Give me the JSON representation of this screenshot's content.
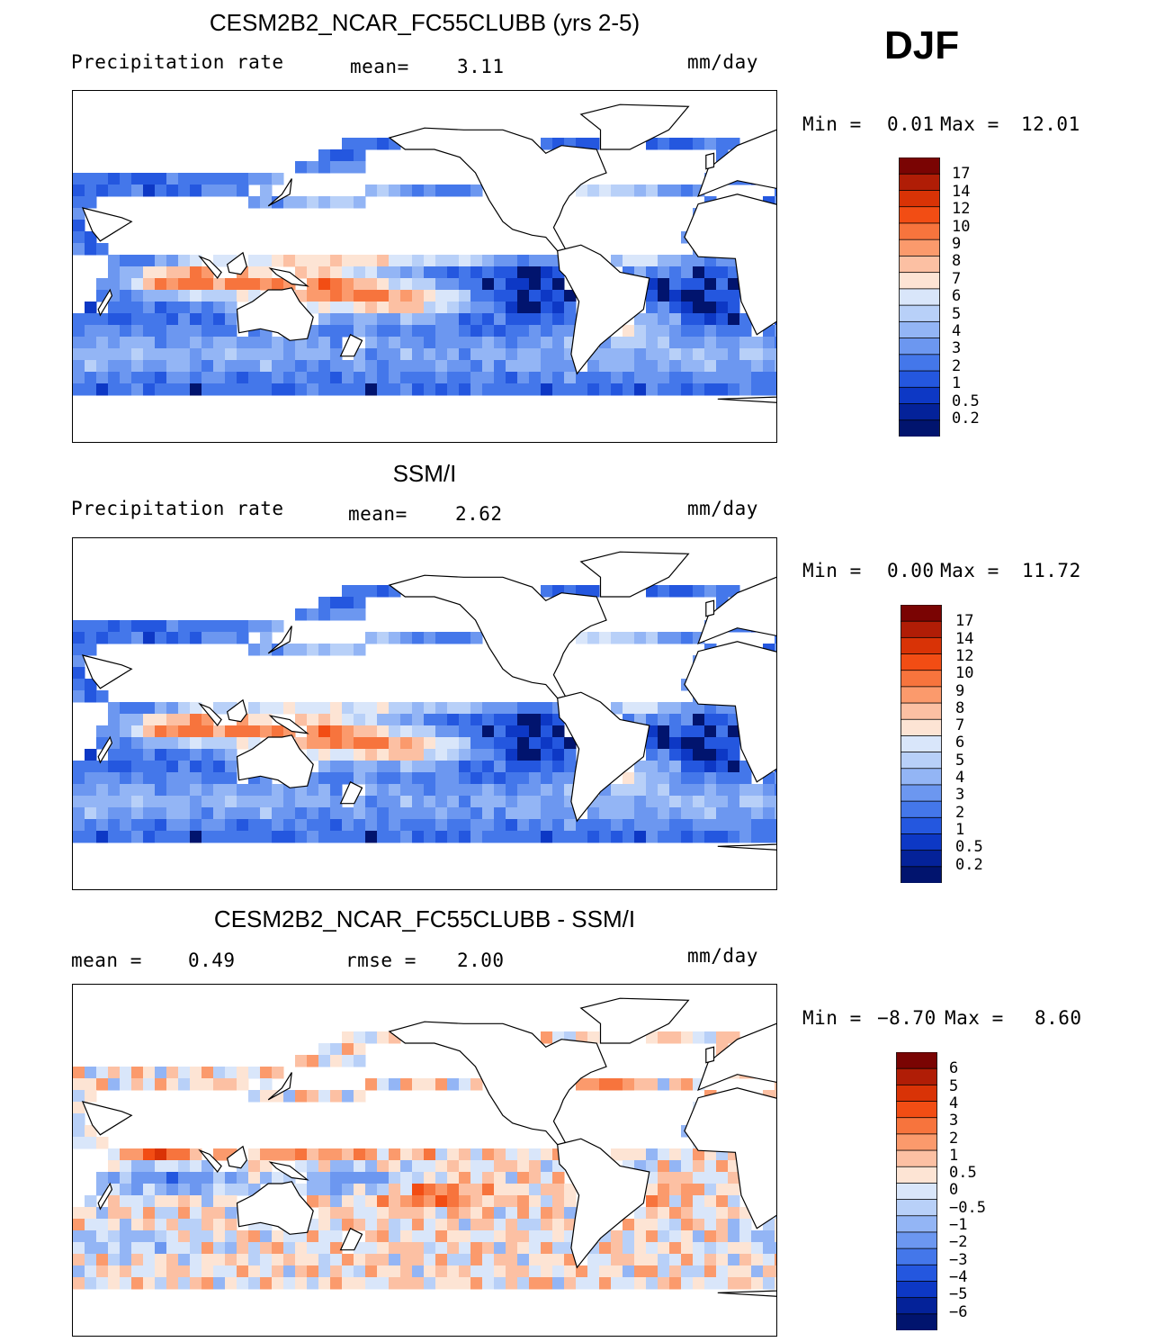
{
  "season": "DJF",
  "panels": [
    {
      "title": "CESM2B2_NCAR_FC55CLUBB (yrs 2-5)",
      "left_label": "Precipitation rate",
      "center_label": "mean=",
      "center_value": "3.11",
      "units": "mm/day",
      "min_label": "Min =",
      "min_value": "0.01",
      "max_label": "Max =",
      "max_value": "12.01",
      "palette": "precip",
      "pattern": "model"
    },
    {
      "title": "SSM/I",
      "left_label": "Precipitation rate",
      "center_label": "mean=",
      "center_value": "2.62",
      "units": "mm/day",
      "min_label": "Min =",
      "min_value": "0.00",
      "max_label": "Max =",
      "max_value": "11.72",
      "palette": "precip",
      "pattern": "obs"
    },
    {
      "title": "CESM2B2_NCAR_FC55CLUBB - SSM/I",
      "left_label": "mean =",
      "left_value": "0.49",
      "center_label": "rmse =",
      "center_value": "2.00",
      "units": "mm/day",
      "min_label": "Min =",
      "min_value": "−8.70",
      "max_label": "Max =",
      "max_value": "8.60",
      "palette": "diff",
      "pattern": "diff"
    }
  ],
  "colorbars": {
    "precip": {
      "labels": [
        "17",
        "14",
        "12",
        "10",
        "9",
        "8",
        "7",
        "6",
        "5",
        "4",
        "3",
        "2",
        "1",
        "0.5",
        "0.2"
      ],
      "colors": [
        "#7a0403",
        "#b01d06",
        "#d93306",
        "#f24d14",
        "#f7743d",
        "#fb9a6c",
        "#fcc0a3",
        "#fde4d4",
        "#d9e6fa",
        "#b8d0f8",
        "#93b5f5",
        "#6c97f0",
        "#4477ea",
        "#2457df",
        "#0d38c5",
        "#042299",
        "#01146e"
      ]
    },
    "diff": {
      "labels": [
        "6",
        "5",
        "4",
        "3",
        "2",
        "1",
        "0.5",
        "0",
        "−0.5",
        "−1",
        "−2",
        "−3",
        "−4",
        "−5",
        "−6"
      ],
      "colors": [
        "#7a0403",
        "#b01d06",
        "#d93306",
        "#f24d14",
        "#f7743d",
        "#fb9a6c",
        "#fcc0a3",
        "#fde4d4",
        "#d9e6fa",
        "#b8d0f8",
        "#93b5f5",
        "#6c97f0",
        "#4477ea",
        "#2457df",
        "#0d38c5",
        "#042299",
        "#01146e"
      ]
    }
  }
}
